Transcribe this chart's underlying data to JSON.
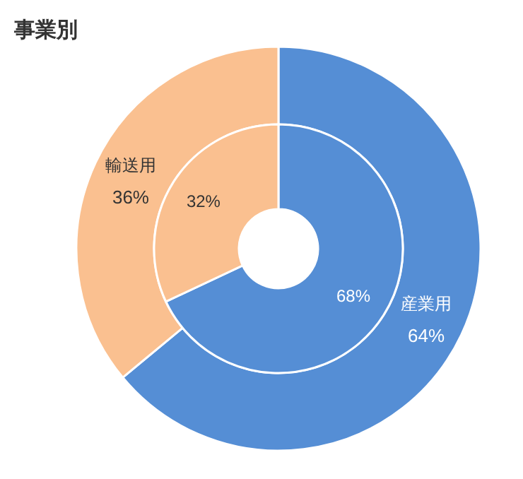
{
  "chart_data": {
    "type": "donut",
    "title": "事業別",
    "categories": [
      "産業用",
      "輸送用"
    ],
    "colors": [
      "#558ed5",
      "#fac090"
    ],
    "series": [
      {
        "values": [
          64,
          36
        ],
        "value_labels": [
          "64%",
          "36%"
        ]
      },
      {
        "values": [
          68,
          32
        ],
        "value_labels": [
          "68%",
          "32%"
        ]
      }
    ]
  }
}
